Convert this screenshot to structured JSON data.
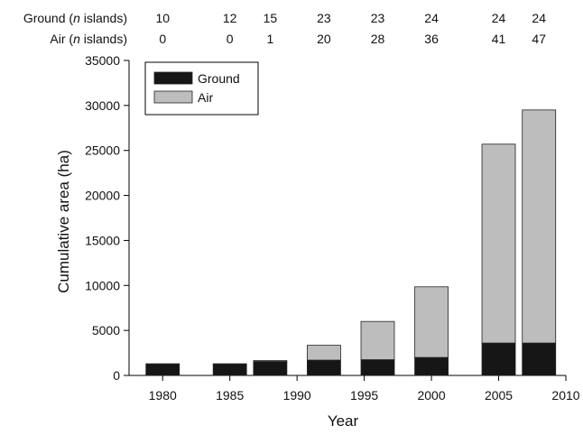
{
  "chart_data": {
    "type": "bar",
    "stacked": true,
    "x": [
      1980,
      1985,
      1988,
      1992,
      1996,
      2000,
      2005,
      2008
    ],
    "series": [
      {
        "name": "Ground",
        "color": "#161616",
        "values": [
          1300,
          1300,
          1550,
          1700,
          1750,
          2000,
          3600,
          3600
        ]
      },
      {
        "name": "Air",
        "color": "#bdbdbd",
        "values": [
          0,
          0,
          100,
          1650,
          4250,
          7850,
          22100,
          25900
        ]
      }
    ],
    "xlabel": "Year",
    "ylabel": "Cumulative area (ha)",
    "xlim": [
      1977.5,
      2010
    ],
    "ylim": [
      0,
      35000
    ],
    "xticks": [
      1980,
      1985,
      1990,
      1995,
      2000,
      2005,
      2010
    ],
    "yticks": [
      0,
      5000,
      10000,
      15000,
      20000,
      25000,
      30000,
      35000
    ],
    "legend": {
      "placement": "top-left",
      "entries": [
        "Ground",
        "Air"
      ]
    },
    "grid": false,
    "count_rows": [
      {
        "label_prefix": "Ground (",
        "label_italic": "n",
        "label_suffix": " islands)",
        "values": [
          "10",
          "12",
          "15",
          "23",
          "23",
          "24",
          "24",
          "24"
        ]
      },
      {
        "label_prefix": "Air (",
        "label_italic": "n",
        "label_suffix": " islands)",
        "values": [
          "0",
          "0",
          "1",
          "20",
          "28",
          "36",
          "41",
          "47"
        ]
      }
    ]
  }
}
